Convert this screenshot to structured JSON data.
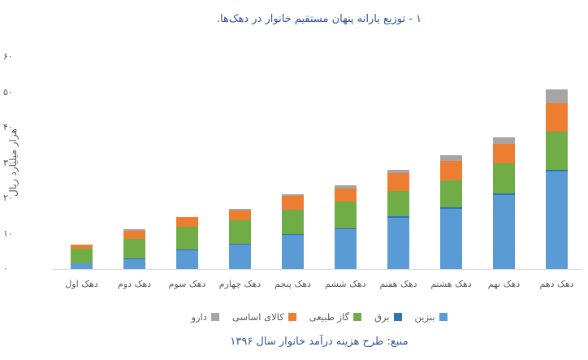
{
  "figure": {
    "source_note": "منبع: طرح هزینه درآمد خانوار سال ۱۳۹۶"
  },
  "colors": {
    "title_text": "#2F5496",
    "axis_text": "#595959",
    "axis_line": "#D9D9D9",
    "background": "#FFFFFF"
  },
  "chart_data": {
    "type": "bar",
    "stacked": true,
    "rtl": true,
    "title": "۱ - توزیع یارانه پنهان مستقیم خانوار در دهک‌ها.",
    "xlabel": "",
    "ylabel": "هزار میلیارد ریال",
    "ylim": [
      0,
      60
    ],
    "grid": false,
    "legend_position": "bottom",
    "categories": [
      "دهک اول",
      "دهک دوم",
      "دهک سوم",
      "دهک چهارم",
      "دهک پنجم",
      "دهک ششم",
      "دهک هفتم",
      "دهک هشتم",
      "دهک نهم",
      "دهک دهم"
    ],
    "y_ticks": [
      {
        "value": 0,
        "label": "۰"
      },
      {
        "value": 10,
        "label": "۱۰"
      },
      {
        "value": 20,
        "label": "۲۰"
      },
      {
        "value": 30,
        "label": "۳۰"
      },
      {
        "value": 40,
        "label": "۴۰"
      },
      {
        "value": 50,
        "label": "۵۰"
      },
      {
        "value": 60,
        "label": "۶۰"
      }
    ],
    "series": [
      {
        "name": "بنزین",
        "color": "#5B9BD5",
        "values": [
          1.5,
          2.7,
          5.4,
          7.0,
          9.6,
          11.3,
          14.6,
          17.1,
          20.9,
          27.5
        ]
      },
      {
        "name": "برق",
        "color": "#2E75B6",
        "values": [
          0.2,
          0.2,
          0.2,
          0.2,
          0.2,
          0.2,
          0.3,
          0.3,
          0.5,
          0.6
        ]
      },
      {
        "name": "گاز طبیعی",
        "color": "#70AD47",
        "values": [
          4.0,
          5.6,
          6.3,
          6.7,
          6.9,
          7.5,
          7.2,
          7.7,
          8.6,
          10.8
        ]
      },
      {
        "name": "کالای اساسی",
        "color": "#ED7D31",
        "values": [
          1.3,
          2.4,
          2.8,
          2.7,
          3.9,
          3.7,
          5.1,
          5.4,
          5.4,
          8.1
        ]
      },
      {
        "name": "دارو",
        "color": "#A5A5A5",
        "values": [
          0.0,
          0.3,
          0.1,
          0.4,
          0.6,
          0.9,
          0.9,
          1.8,
          1.9,
          3.8
        ]
      }
    ],
    "totals": [
      7.0,
      11.2,
      14.8,
      17.0,
      21.2,
      23.6,
      28.1,
      32.3,
      37.3,
      50.8
    ]
  }
}
